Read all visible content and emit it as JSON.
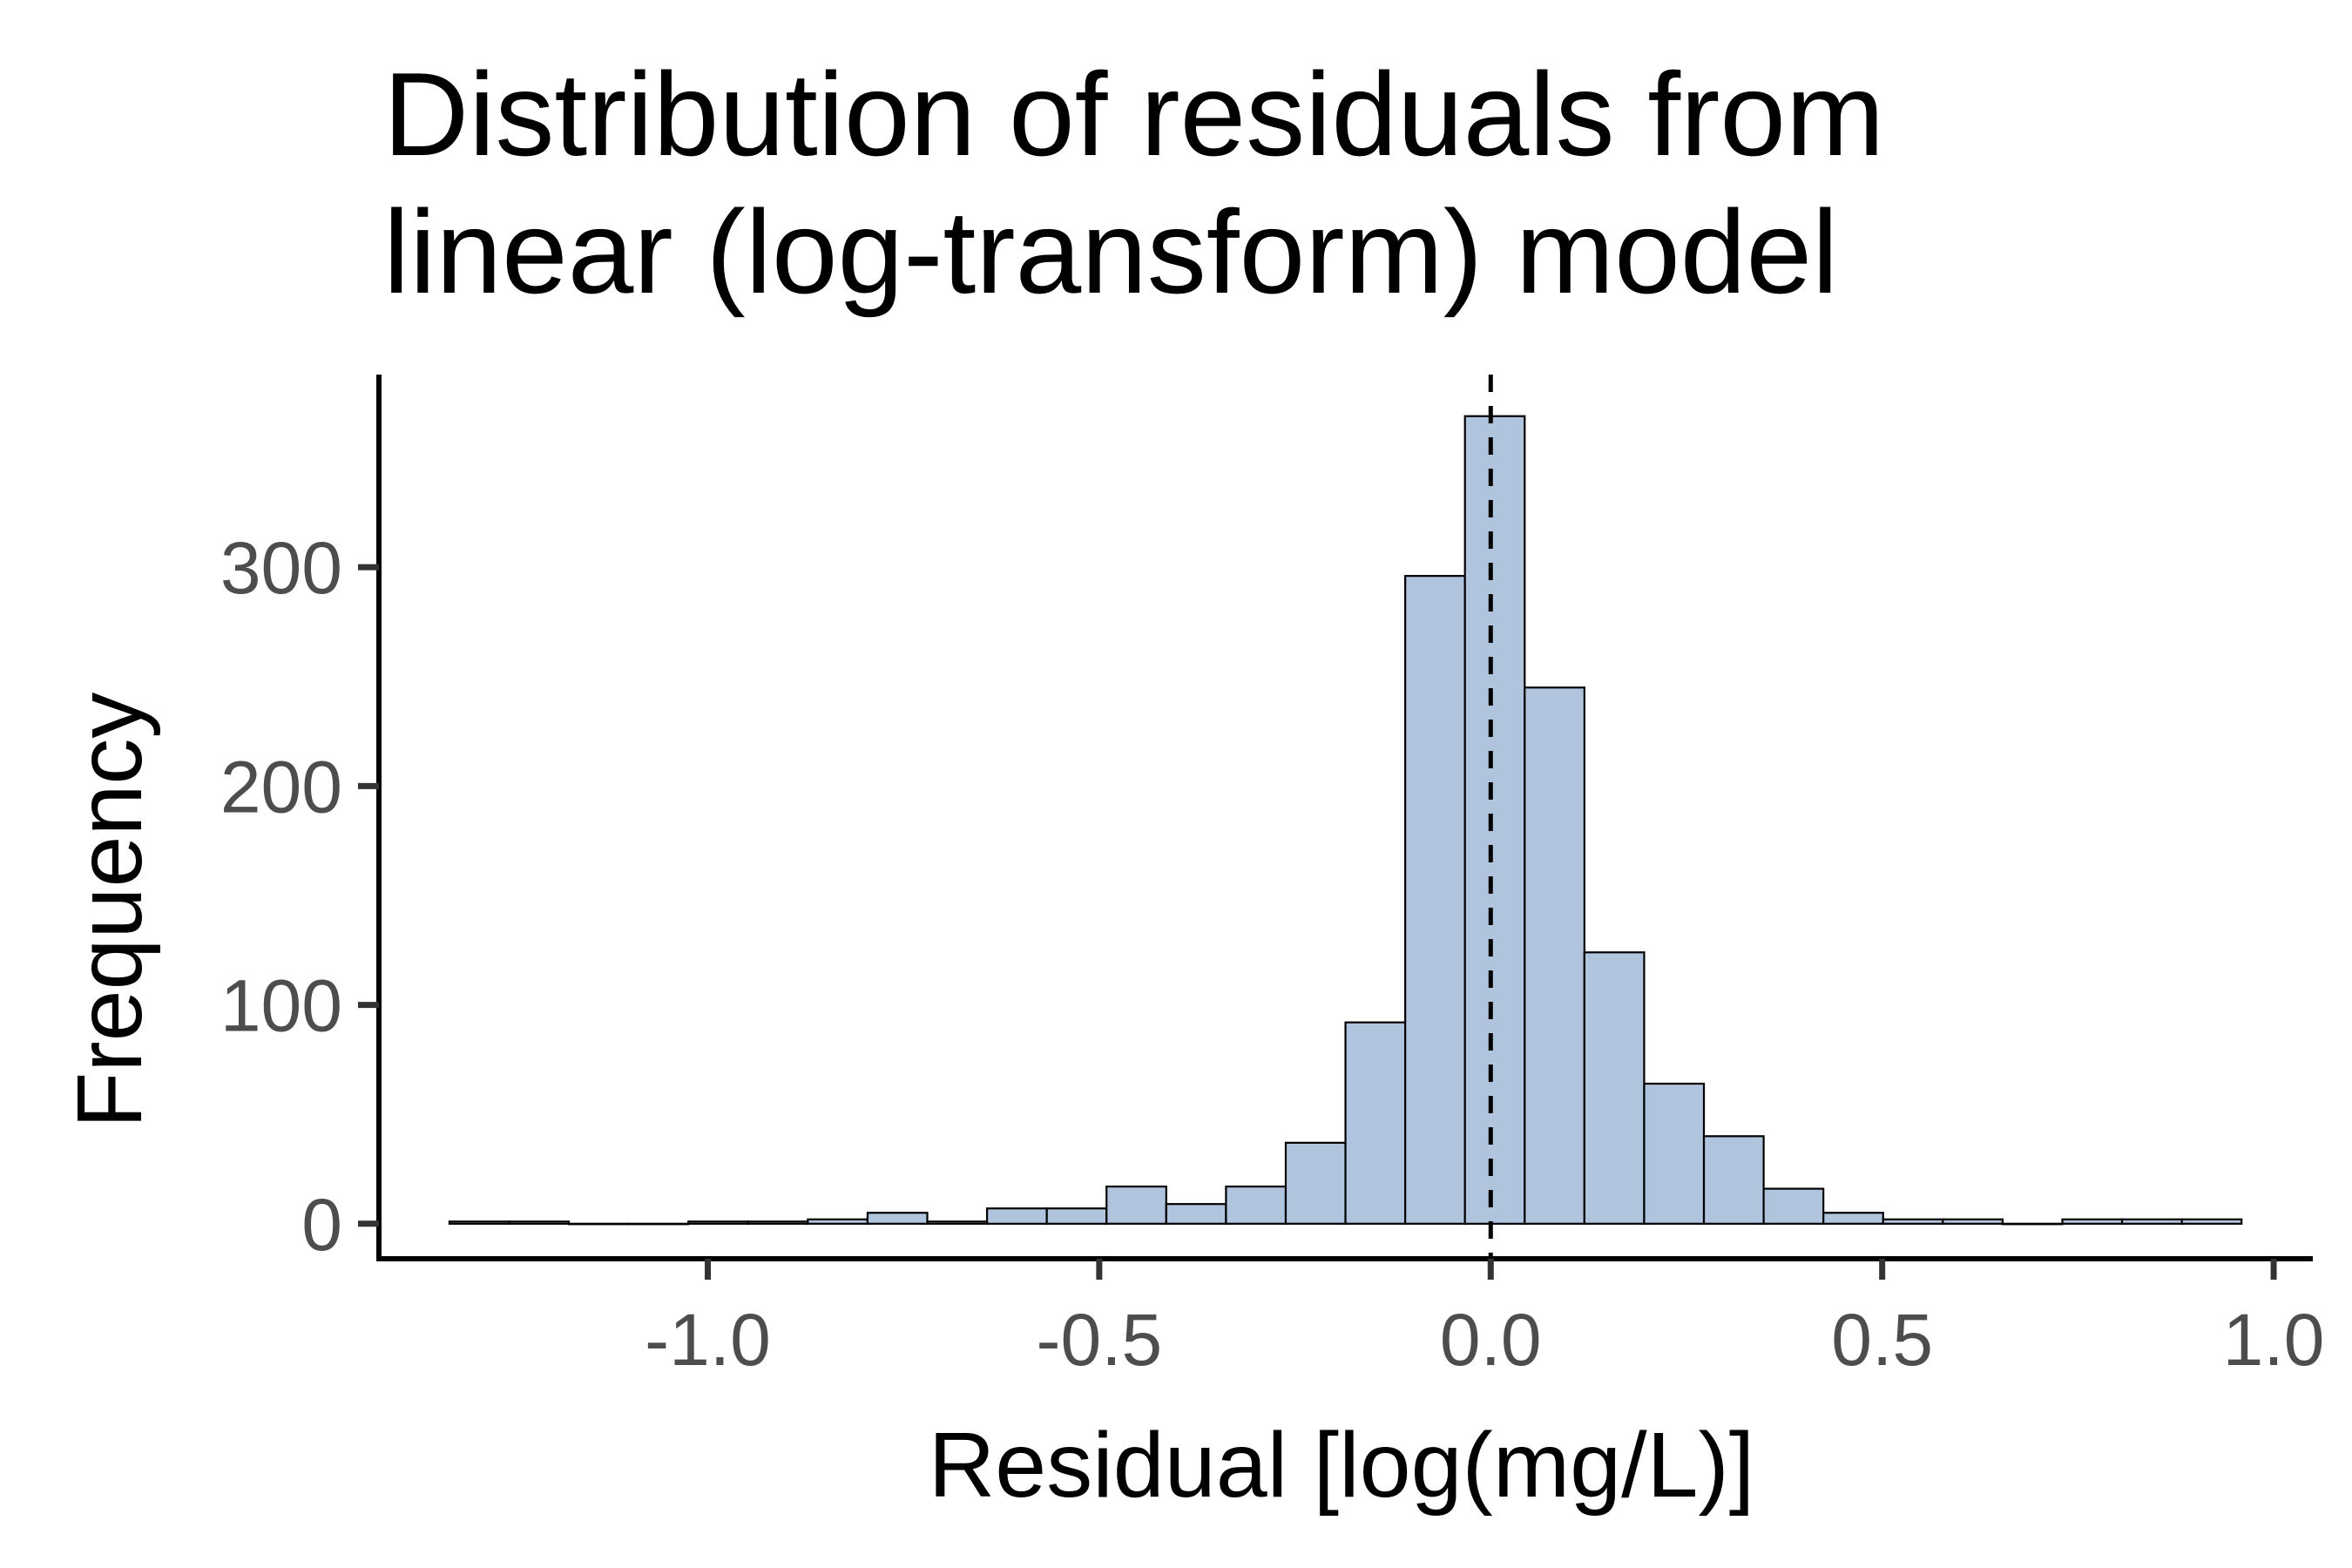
{
  "chart_data": {
    "type": "bar",
    "title_lines": [
      "Distribution of residuals from",
      "linear (log-transform) model"
    ],
    "xlabel": "Residual [log(mg/L)]",
    "ylabel": "Frequency",
    "xlim": [
      -1.42,
      1.05
    ],
    "ylim": [
      -16,
      388
    ],
    "x_ticks": [
      -1.0,
      -0.5,
      0.0,
      0.5,
      1.0
    ],
    "x_tick_labels": [
      "-1.0",
      "-0.5",
      "0.0",
      "0.5",
      "1.0"
    ],
    "y_ticks": [
      0,
      100,
      200,
      300
    ],
    "y_tick_labels": [
      "0",
      "100",
      "200",
      "300"
    ],
    "bin_start": -1.33,
    "bin_width": 0.0763,
    "values": [
      1,
      1,
      0,
      0,
      1,
      1,
      2,
      5,
      1,
      7,
      7,
      17,
      9,
      17,
      37,
      92,
      296,
      369,
      245,
      124,
      64,
      40,
      16,
      5,
      2,
      2,
      0,
      2,
      2,
      2
    ],
    "reference_line_x": 0.0,
    "reference_line_style": "dashed",
    "grid": false,
    "colors": {
      "bar_fill": "#b0c4de",
      "bar_stroke": "#000000",
      "axis": "#000000",
      "tick_text": "#4d4d4d"
    }
  }
}
